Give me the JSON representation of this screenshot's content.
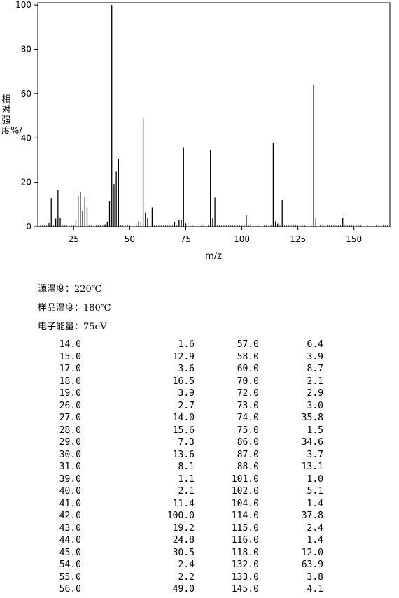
{
  "chart_data": {
    "type": "bar",
    "title": "",
    "xlabel": "m/z",
    "ylabel": "相对强度%/",
    "xlim": [
      9,
      166
    ],
    "ylim": [
      0,
      101
    ],
    "xticks": [
      25,
      50,
      75,
      100,
      125,
      150
    ],
    "yticks": [
      0,
      20,
      40,
      60,
      80,
      100
    ],
    "x": [
      14,
      15,
      17,
      18,
      19,
      26,
      27,
      28,
      29,
      30,
      31,
      39,
      40,
      41,
      42,
      43,
      44,
      45,
      54,
      55,
      56,
      57,
      58,
      60,
      70,
      72,
      73,
      74,
      75,
      86,
      87,
      88,
      101,
      102,
      104,
      114,
      115,
      116,
      118,
      132,
      133,
      145
    ],
    "values": [
      1.6,
      12.9,
      3.6,
      16.5,
      3.9,
      2.7,
      14.0,
      15.6,
      7.3,
      13.6,
      8.1,
      1.1,
      2.1,
      11.4,
      100.0,
      19.2,
      24.8,
      30.5,
      2.4,
      2.2,
      49.0,
      6.4,
      3.9,
      8.7,
      2.1,
      2.9,
      3.0,
      35.8,
      1.5,
      34.6,
      3.7,
      13.1,
      1.0,
      5.1,
      1.4,
      37.8,
      2.4,
      1.4,
      12.0,
      63.9,
      3.8,
      4.1
    ]
  },
  "conditions": [
    {
      "label": "源温度：",
      "value": "220℃"
    },
    {
      "label": "样品温度：",
      "value": "180℃"
    },
    {
      "label": "电子能量：",
      "value": "75eV"
    }
  ],
  "peaks_left": [
    [
      "14.0",
      "1.6"
    ],
    [
      "15.0",
      "12.9"
    ],
    [
      "17.0",
      "3.6"
    ],
    [
      "18.0",
      "16.5"
    ],
    [
      "19.0",
      "3.9"
    ],
    [
      "26.0",
      "2.7"
    ],
    [
      "27.0",
      "14.0"
    ],
    [
      "28.0",
      "15.6"
    ],
    [
      "29.0",
      "7.3"
    ],
    [
      "30.0",
      "13.6"
    ],
    [
      "31.0",
      "8.1"
    ],
    [
      "39.0",
      "1.1"
    ],
    [
      "40.0",
      "2.1"
    ],
    [
      "41.0",
      "11.4"
    ],
    [
      "42.0",
      "100.0"
    ],
    [
      "43.0",
      "19.2"
    ],
    [
      "44.0",
      "24.8"
    ],
    [
      "45.0",
      "30.5"
    ],
    [
      "54.0",
      "2.4"
    ],
    [
      "55.0",
      "2.2"
    ],
    [
      "56.0",
      "49.0"
    ]
  ],
  "peaks_right": [
    [
      "57.0",
      "6.4"
    ],
    [
      "58.0",
      "3.9"
    ],
    [
      "60.0",
      "8.7"
    ],
    [
      "70.0",
      "2.1"
    ],
    [
      "72.0",
      "2.9"
    ],
    [
      "73.0",
      "3.0"
    ],
    [
      "74.0",
      "35.8"
    ],
    [
      "75.0",
      "1.5"
    ],
    [
      "86.0",
      "34.6"
    ],
    [
      "87.0",
      "3.7"
    ],
    [
      "88.0",
      "13.1"
    ],
    [
      "101.0",
      "1.0"
    ],
    [
      "102.0",
      "5.1"
    ],
    [
      "104.0",
      "1.4"
    ],
    [
      "114.0",
      "37.8"
    ],
    [
      "115.0",
      "2.4"
    ],
    [
      "116.0",
      "1.4"
    ],
    [
      "118.0",
      "12.0"
    ],
    [
      "132.0",
      "63.9"
    ],
    [
      "133.0",
      "3.8"
    ],
    [
      "145.0",
      "4.1"
    ]
  ]
}
